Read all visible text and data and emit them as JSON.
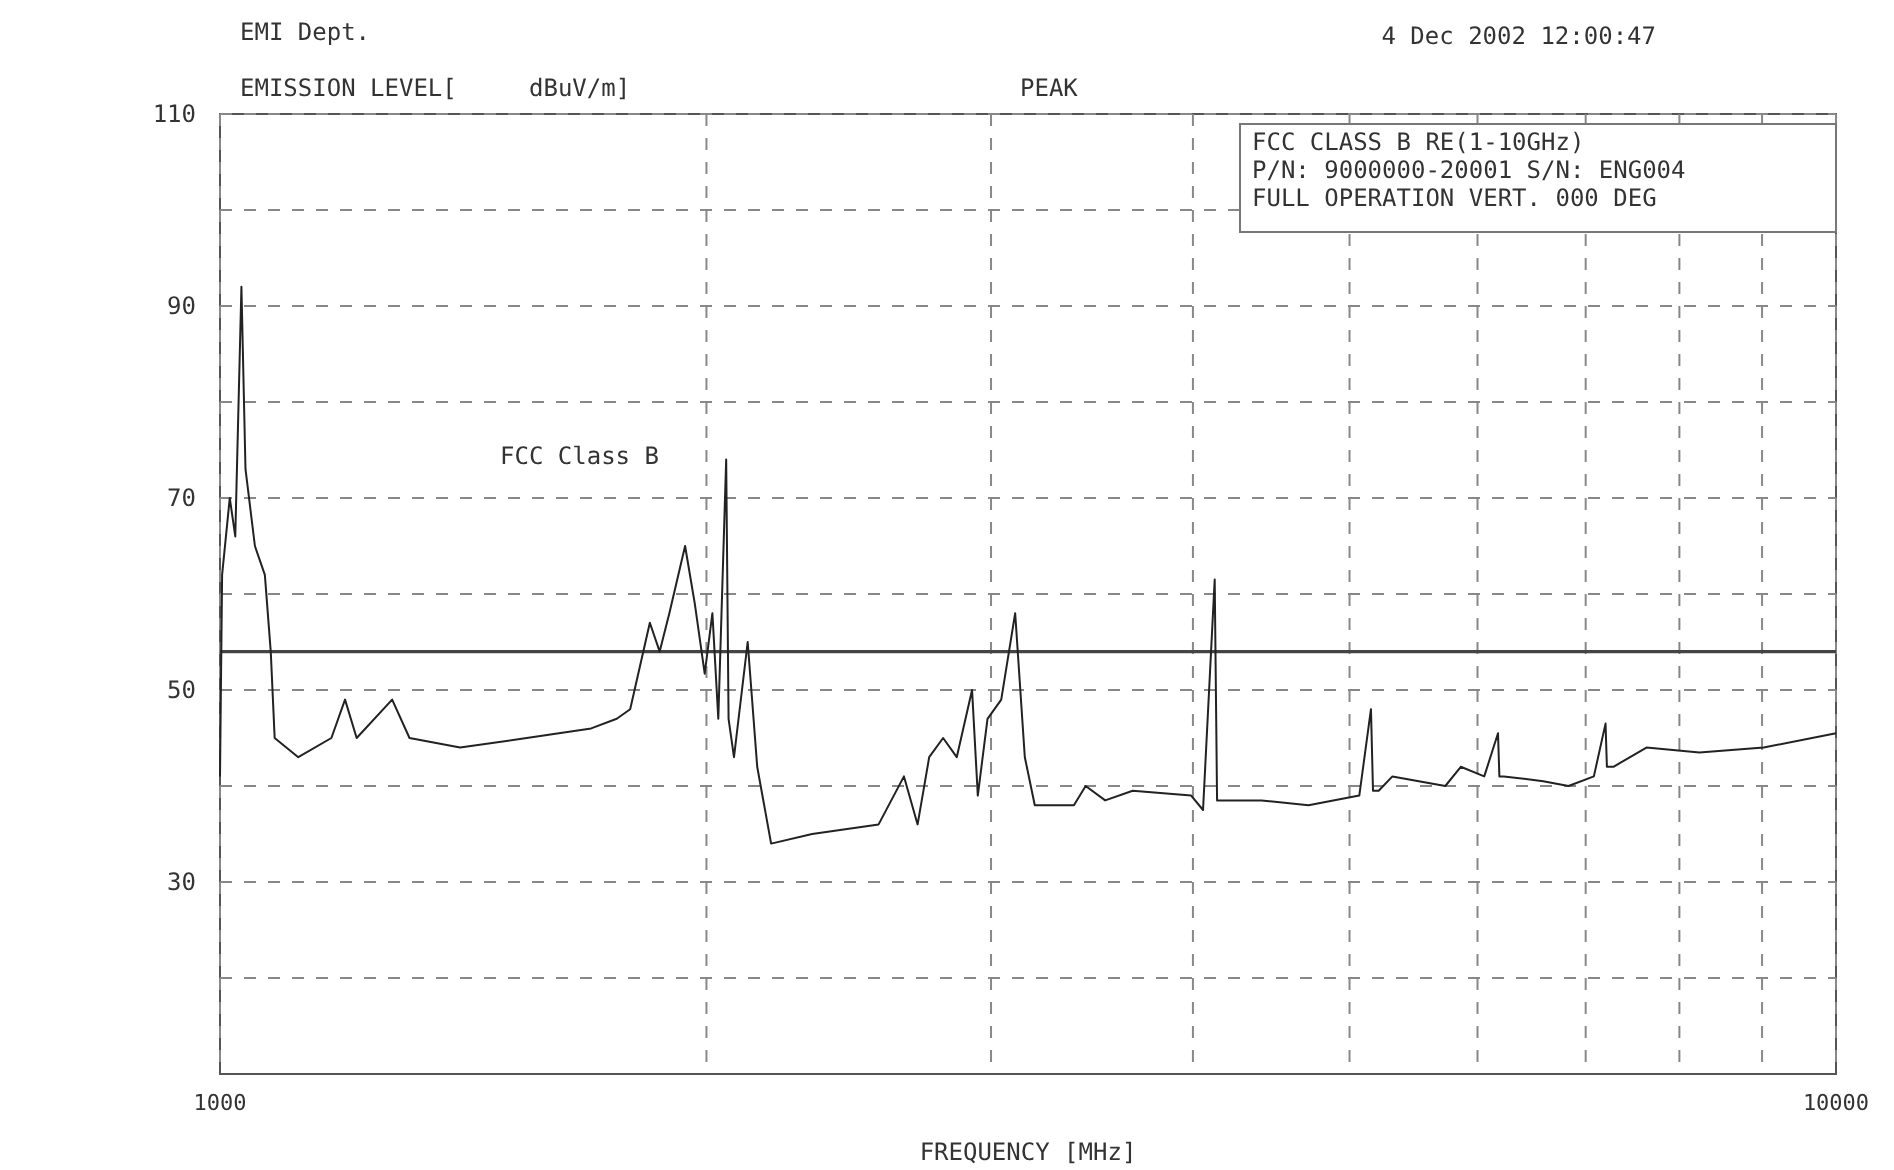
{
  "chart_data": {
    "type": "line",
    "title": "EMI Dept.",
    "ylabel": "EMISSION LEVEL[     dBuV/m]",
    "xlabel": "FREQUENCY [MHz]",
    "annotations": [
      "PEAK",
      "4 Dec 2002  12:00:47",
      "FCC CLASS B  RE(1-10GHz)",
      "P/N: 9000000-20001 S/N: ENG004",
      "FULL OPERATION VERT. 000 DEG"
    ],
    "log": "x",
    "grid": true,
    "line_style": "solid",
    "xlim": [
      1000,
      10000
    ],
    "xticks": [
      1000,
      {
        "value": 2000,
        "label": null
      },
      {
        "value": 3000,
        "label": null
      },
      {
        "value": 4000,
        "label": null
      },
      {
        "value": 5000,
        "label": null
      },
      {
        "value": 6000,
        "label": null
      },
      {
        "value": 7000,
        "label": null
      },
      {
        "value": 8000,
        "label": null
      },
      {
        "value": 9000,
        "label": null
      },
      10000
    ],
    "ylim": [
      10,
      110
    ],
    "yticks": [
      {
        "value": 20,
        "label": null
      },
      30,
      {
        "value": 40,
        "label": null
      },
      50,
      {
        "value": 60,
        "label": null
      },
      70,
      {
        "value": 80,
        "label": null
      },
      90,
      {
        "value": 100,
        "label": null
      },
      110
    ],
    "ref_lines": [
      {
        "axis": "y",
        "value": 54,
        "label": "FCC Class B",
        "color": "#444444"
      }
    ],
    "series": [
      {
        "color": "#222222",
        "x": [
          1000,
          1003,
          1014,
          1022,
          1031,
          1037,
          1051,
          1066,
          1075,
          1081,
          1118,
          1172,
          1195,
          1215,
          1278,
          1310,
          1408,
          1548,
          1697,
          1760,
          1794,
          1845,
          1871,
          1897,
          1940,
          1967,
          1995,
          2017,
          2034,
          2057,
          2064,
          2080,
          2121,
          2150,
          2193,
          2325,
          2556,
          2650,
          2702,
          2747,
          2802,
          2857,
          2920,
          2944,
          2985,
          3044,
          3105,
          3148,
          3193,
          3376,
          3433,
          3530,
          3671,
          3990,
          4058,
          4126,
          4140,
          4172,
          4290,
          4411,
          4716,
          5070,
          5155,
          5170,
          5212,
          5315,
          5731,
          5859,
          6058,
          6178,
          6190,
          6229,
          6589,
          6831,
          7082,
          7201,
          7215,
          7282,
          7633,
          8232,
          9021,
          10000
        ],
        "values": [
          41,
          62,
          70,
          66,
          92,
          73,
          65,
          62,
          54,
          45,
          43,
          45,
          49,
          45,
          49,
          45,
          44,
          45,
          46,
          47,
          48,
          57,
          54,
          58,
          65,
          59,
          51.7,
          58,
          47,
          74,
          47,
          43,
          55,
          42,
          34,
          35,
          36,
          41,
          36,
          43,
          45,
          43,
          50,
          39,
          47,
          49,
          58,
          43,
          38,
          38,
          40,
          38.5,
          39.5,
          39,
          37.5,
          61.5,
          38.5,
          38.5,
          38.5,
          38.5,
          38,
          39,
          48,
          39.5,
          39.5,
          41,
          40,
          42,
          41,
          45.5,
          41,
          41,
          40.5,
          40,
          41,
          46.5,
          42,
          42,
          44,
          43.5,
          44,
          45.5
        ]
      }
    ]
  }
}
